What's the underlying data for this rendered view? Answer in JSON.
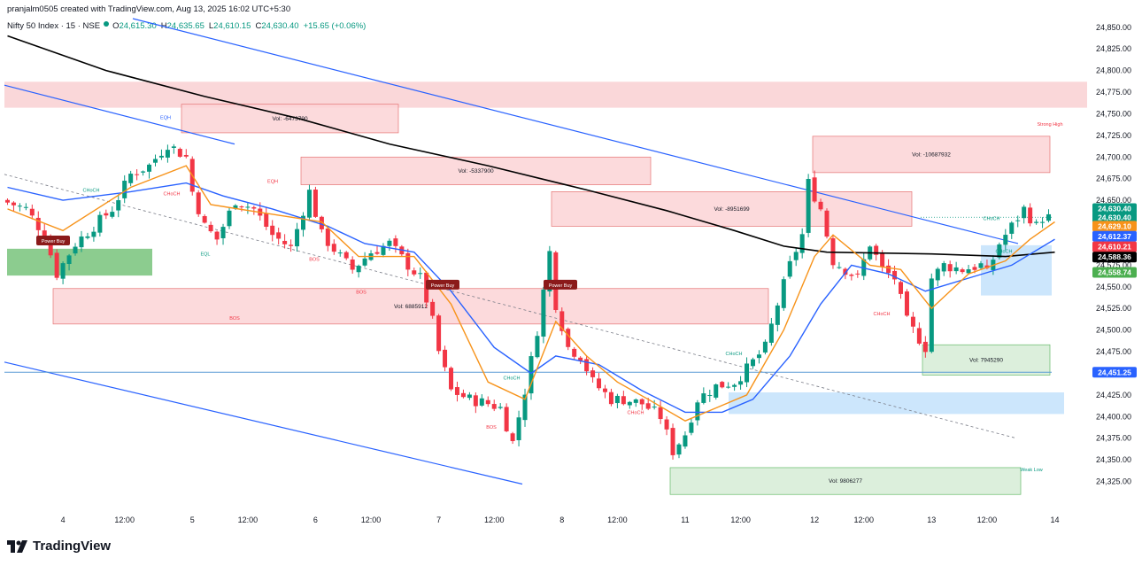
{
  "header": {
    "attribution": "pranjalm0505 created with TradingView.com, Aug 13, 2025 16:02 UTC+5:30",
    "symbol": "Nifty 50 Index · 15 · NSE",
    "open_label": "O",
    "open": "24,615.30",
    "high_label": "H",
    "high": "24,635.65",
    "low_label": "L",
    "low": "24,610.15",
    "close_label": "C",
    "close": "24,630.40",
    "change": "+15.65 (+0.06%)"
  },
  "brand": {
    "logo_text": "TradingView"
  },
  "colors": {
    "up": "#089981",
    "down": "#f23645",
    "ema_orange": "#f7931a",
    "ema_blue": "#2962ff",
    "ma_black": "#000000",
    "trend_blue": "#2962ff",
    "supply": "#f8c9cc",
    "demand": "#c8e6c9",
    "blue_zone": "#bbdefb"
  },
  "chart_data": {
    "type": "candlestick",
    "title": "Nifty 50 Index · 15 · NSE",
    "y_axis": {
      "min": 24300,
      "max": 24860,
      "step": 25,
      "ticks": [
        "24,850.00",
        "24,825.00",
        "24,800.00",
        "24,775.00",
        "24,750.00",
        "24,725.00",
        "24,700.00",
        "24,675.00",
        "24,650.00",
        "24,625.00",
        "24,600.00",
        "24,575.00",
        "24,550.00",
        "24,525.00",
        "24,500.00",
        "24,475.00",
        "24,450.00",
        "24,425.00",
        "24,400.00",
        "24,375.00",
        "24,350.00",
        "24,325.00"
      ]
    },
    "x_axis": {
      "bars": 170,
      "ticks": [
        {
          "bar": 9,
          "label": "4"
        },
        {
          "bar": 19,
          "label": "12:00"
        },
        {
          "bar": 30,
          "label": "5"
        },
        {
          "bar": 39,
          "label": "12:00"
        },
        {
          "bar": 50,
          "label": "6"
        },
        {
          "bar": 59,
          "label": "12:00"
        },
        {
          "bar": 70,
          "label": "7"
        },
        {
          "bar": 79,
          "label": "12:00"
        },
        {
          "bar": 90,
          "label": "8"
        },
        {
          "bar": 99,
          "label": "12:00"
        },
        {
          "bar": 110,
          "label": "11"
        },
        {
          "bar": 119,
          "label": "12:00"
        },
        {
          "bar": 131,
          "label": "12"
        },
        {
          "bar": 139,
          "label": "12:00"
        },
        {
          "bar": 150,
          "label": "13"
        },
        {
          "bar": 159,
          "label": "12:00"
        },
        {
          "bar": 170,
          "label": "14"
        }
      ]
    },
    "close_path": [
      [
        0,
        24650
      ],
      [
        4,
        24640
      ],
      [
        7,
        24610
      ],
      [
        9,
        24565
      ],
      [
        12,
        24600
      ],
      [
        15,
        24620
      ],
      [
        18,
        24640
      ],
      [
        21,
        24680
      ],
      [
        24,
        24690
      ],
      [
        27,
        24715
      ],
      [
        30,
        24700
      ],
      [
        31,
        24660
      ],
      [
        33,
        24620
      ],
      [
        35,
        24605
      ],
      [
        38,
        24650
      ],
      [
        41,
        24640
      ],
      [
        44,
        24610
      ],
      [
        47,
        24595
      ],
      [
        50,
        24660
      ],
      [
        52,
        24610
      ],
      [
        55,
        24585
      ],
      [
        57,
        24570
      ],
      [
        60,
        24590
      ],
      [
        63,
        24600
      ],
      [
        66,
        24575
      ],
      [
        68,
        24560
      ],
      [
        70,
        24510
      ],
      [
        71,
        24475
      ],
      [
        73,
        24430
      ],
      [
        76,
        24420
      ],
      [
        79,
        24415
      ],
      [
        81,
        24410
      ],
      [
        83,
        24370
      ],
      [
        85,
        24430
      ],
      [
        87,
        24500
      ],
      [
        89,
        24590
      ],
      [
        90,
        24530
      ],
      [
        92,
        24480
      ],
      [
        94,
        24470
      ],
      [
        96,
        24440
      ],
      [
        99,
        24420
      ],
      [
        101,
        24420
      ],
      [
        104,
        24415
      ],
      [
        107,
        24400
      ],
      [
        109,
        24360
      ],
      [
        111,
        24380
      ],
      [
        113,
        24420
      ],
      [
        116,
        24435
      ],
      [
        119,
        24440
      ],
      [
        121,
        24455
      ],
      [
        124,
        24480
      ],
      [
        126,
        24530
      ],
      [
        128,
        24575
      ],
      [
        130,
        24610
      ],
      [
        131,
        24670
      ],
      [
        133,
        24640
      ],
      [
        135,
        24580
      ],
      [
        137,
        24570
      ],
      [
        139,
        24560
      ],
      [
        141,
        24600
      ],
      [
        143,
        24570
      ],
      [
        145,
        24560
      ],
      [
        147,
        24510
      ],
      [
        149,
        24490
      ],
      [
        150,
        24480
      ],
      [
        151,
        24560
      ],
      [
        153,
        24575
      ],
      [
        156,
        24570
      ],
      [
        159,
        24575
      ],
      [
        160,
        24565
      ],
      [
        162,
        24600
      ],
      [
        164,
        24620
      ],
      [
        166,
        24640
      ],
      [
        168,
        24620
      ],
      [
        169,
        24630
      ]
    ],
    "indicators": {
      "ema_orange": [
        [
          0,
          24640
        ],
        [
          9,
          24615
        ],
        [
          20,
          24665
        ],
        [
          29,
          24690
        ],
        [
          33,
          24645
        ],
        [
          42,
          24635
        ],
        [
          51,
          24625
        ],
        [
          57,
          24585
        ],
        [
          66,
          24585
        ],
        [
          72,
          24530
        ],
        [
          78,
          24440
        ],
        [
          84,
          24420
        ],
        [
          89,
          24510
        ],
        [
          94,
          24470
        ],
        [
          99,
          24440
        ],
        [
          104,
          24420
        ],
        [
          110,
          24395
        ],
        [
          115,
          24410
        ],
        [
          120,
          24425
        ],
        [
          126,
          24500
        ],
        [
          131,
          24585
        ],
        [
          134,
          24610
        ],
        [
          140,
          24575
        ],
        [
          145,
          24570
        ],
        [
          150,
          24525
        ],
        [
          156,
          24565
        ],
        [
          162,
          24580
        ],
        [
          166,
          24605
        ],
        [
          170,
          24625
        ]
      ],
      "ema_blue": [
        [
          0,
          24665
        ],
        [
          9,
          24650
        ],
        [
          20,
          24660
        ],
        [
          29,
          24670
        ],
        [
          35,
          24655
        ],
        [
          43,
          24640
        ],
        [
          52,
          24620
        ],
        [
          58,
          24600
        ],
        [
          66,
          24590
        ],
        [
          72,
          24545
        ],
        [
          79,
          24480
        ],
        [
          85,
          24450
        ],
        [
          89,
          24470
        ],
        [
          96,
          24460
        ],
        [
          103,
          24430
        ],
        [
          110,
          24405
        ],
        [
          116,
          24405
        ],
        [
          121,
          24420
        ],
        [
          127,
          24470
        ],
        [
          132,
          24530
        ],
        [
          137,
          24575
        ],
        [
          143,
          24565
        ],
        [
          149,
          24545
        ],
        [
          156,
          24560
        ],
        [
          163,
          24575
        ],
        [
          170,
          24605
        ]
      ],
      "ma_black": [
        [
          0,
          24840
        ],
        [
          16,
          24800
        ],
        [
          32,
          24770
        ],
        [
          47,
          24745
        ],
        [
          62,
          24715
        ],
        [
          78,
          24690
        ],
        [
          94,
          24662
        ],
        [
          107,
          24638
        ],
        [
          118,
          24615
        ],
        [
          126,
          24597
        ],
        [
          133,
          24590
        ],
        [
          150,
          24588
        ],
        [
          162,
          24585
        ],
        [
          170,
          24590
        ]
      ]
    },
    "zones": [
      {
        "label": "Vol: -6473790",
        "kind": "supply"
      },
      {
        "label": "Vol: -5337900",
        "kind": "supply"
      },
      {
        "label": "Vol: -10687932",
        "kind": "supply"
      },
      {
        "label": "Vol: -8951699",
        "kind": "supply"
      },
      {
        "label": "Vol: 6885912",
        "kind": "supply"
      },
      {
        "label": "Vol: 7945290",
        "kind": "demand"
      },
      {
        "label": "Vol: 9806277",
        "kind": "demand"
      }
    ],
    "annotations": [
      "BOS",
      "CHoCH",
      "CHoCH",
      "CHoCH",
      "EQH",
      "EQL",
      "BOS",
      "BOS",
      "CHoCH",
      "CHoCH",
      "CHoCH",
      "CHoCH",
      "CHoCH",
      "Strong High",
      "Weak Low",
      "EQH",
      "BOS"
    ],
    "signals": [
      {
        "label": "Power Buy"
      },
      {
        "label": "Power Buy"
      },
      {
        "label": "Power Buy"
      }
    ],
    "price_tags": [
      {
        "value": "24,630.40",
        "color": "#089981"
      },
      {
        "value": "24,630.40",
        "color": "#089981"
      },
      {
        "value": "24,629.10",
        "color": "#f7931a"
      },
      {
        "value": "24,612.37",
        "color": "#2962ff"
      },
      {
        "value": "24,610.21",
        "color": "#f23645"
      },
      {
        "value": "24,588.36",
        "color": "#000000"
      },
      {
        "value": "24,558.74",
        "color": "#4caf50"
      },
      {
        "value": "24,451.25",
        "color": "#2962ff"
      }
    ],
    "hline": 24451.25
  }
}
